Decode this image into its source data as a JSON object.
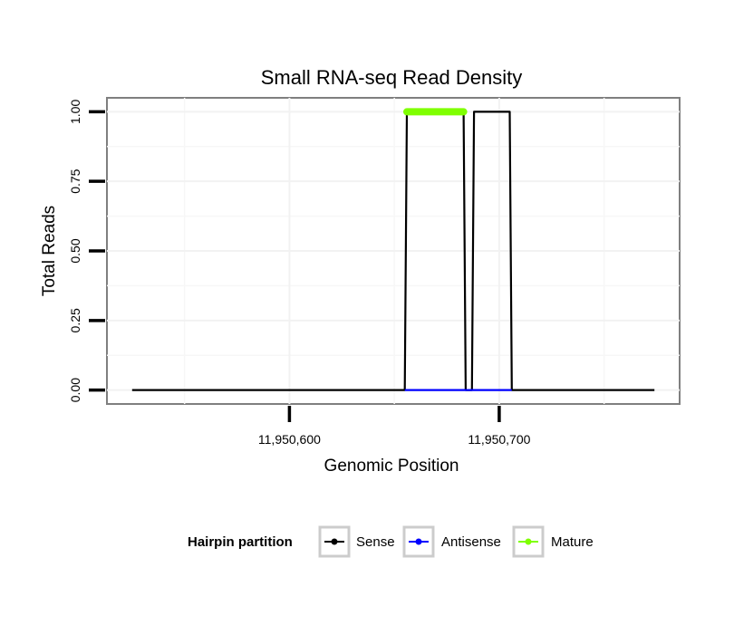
{
  "chart_data": {
    "type": "line",
    "title": "Small RNA-seq Read Density",
    "xlabel": "Genomic Position",
    "ylabel": "Total Reads",
    "xlim": [
      11950513,
      11950786
    ],
    "ylim": [
      -0.05,
      1.05
    ],
    "x_ticks": [
      {
        "value": 11950600,
        "label": "11,950,600"
      },
      {
        "value": 11950700,
        "label": "11,950,700"
      }
    ],
    "y_ticks": [
      {
        "value": 0.0,
        "label": "0.00"
      },
      {
        "value": 0.25,
        "label": "0.25"
      },
      {
        "value": 0.5,
        "label": "0.50"
      },
      {
        "value": 0.75,
        "label": "0.75"
      },
      {
        "value": 1.0,
        "label": "1.00"
      }
    ],
    "grid": true,
    "series": [
      {
        "name": "Sense",
        "color": "#000000",
        "x": [
          11950525,
          11950655,
          11950656,
          11950683,
          11950684,
          11950687,
          11950688,
          11950705,
          11950706,
          11950774
        ],
        "y": [
          0,
          0,
          1,
          1,
          0,
          0,
          1,
          1,
          0,
          0
        ]
      },
      {
        "name": "Antisense",
        "color": "#0000ff",
        "x": [
          11950655,
          11950706
        ],
        "y": [
          0,
          0
        ]
      },
      {
        "name": "Mature",
        "color": "#7fff00",
        "x": [
          11950656,
          11950683
        ],
        "y": [
          1,
          1
        ]
      }
    ],
    "legend": {
      "title": "Hairpin partition",
      "position": "bottom",
      "entries": [
        {
          "label": "Sense",
          "color": "#000000"
        },
        {
          "label": "Antisense",
          "color": "#0000ff"
        },
        {
          "label": "Mature",
          "color": "#7fff00"
        }
      ]
    }
  }
}
